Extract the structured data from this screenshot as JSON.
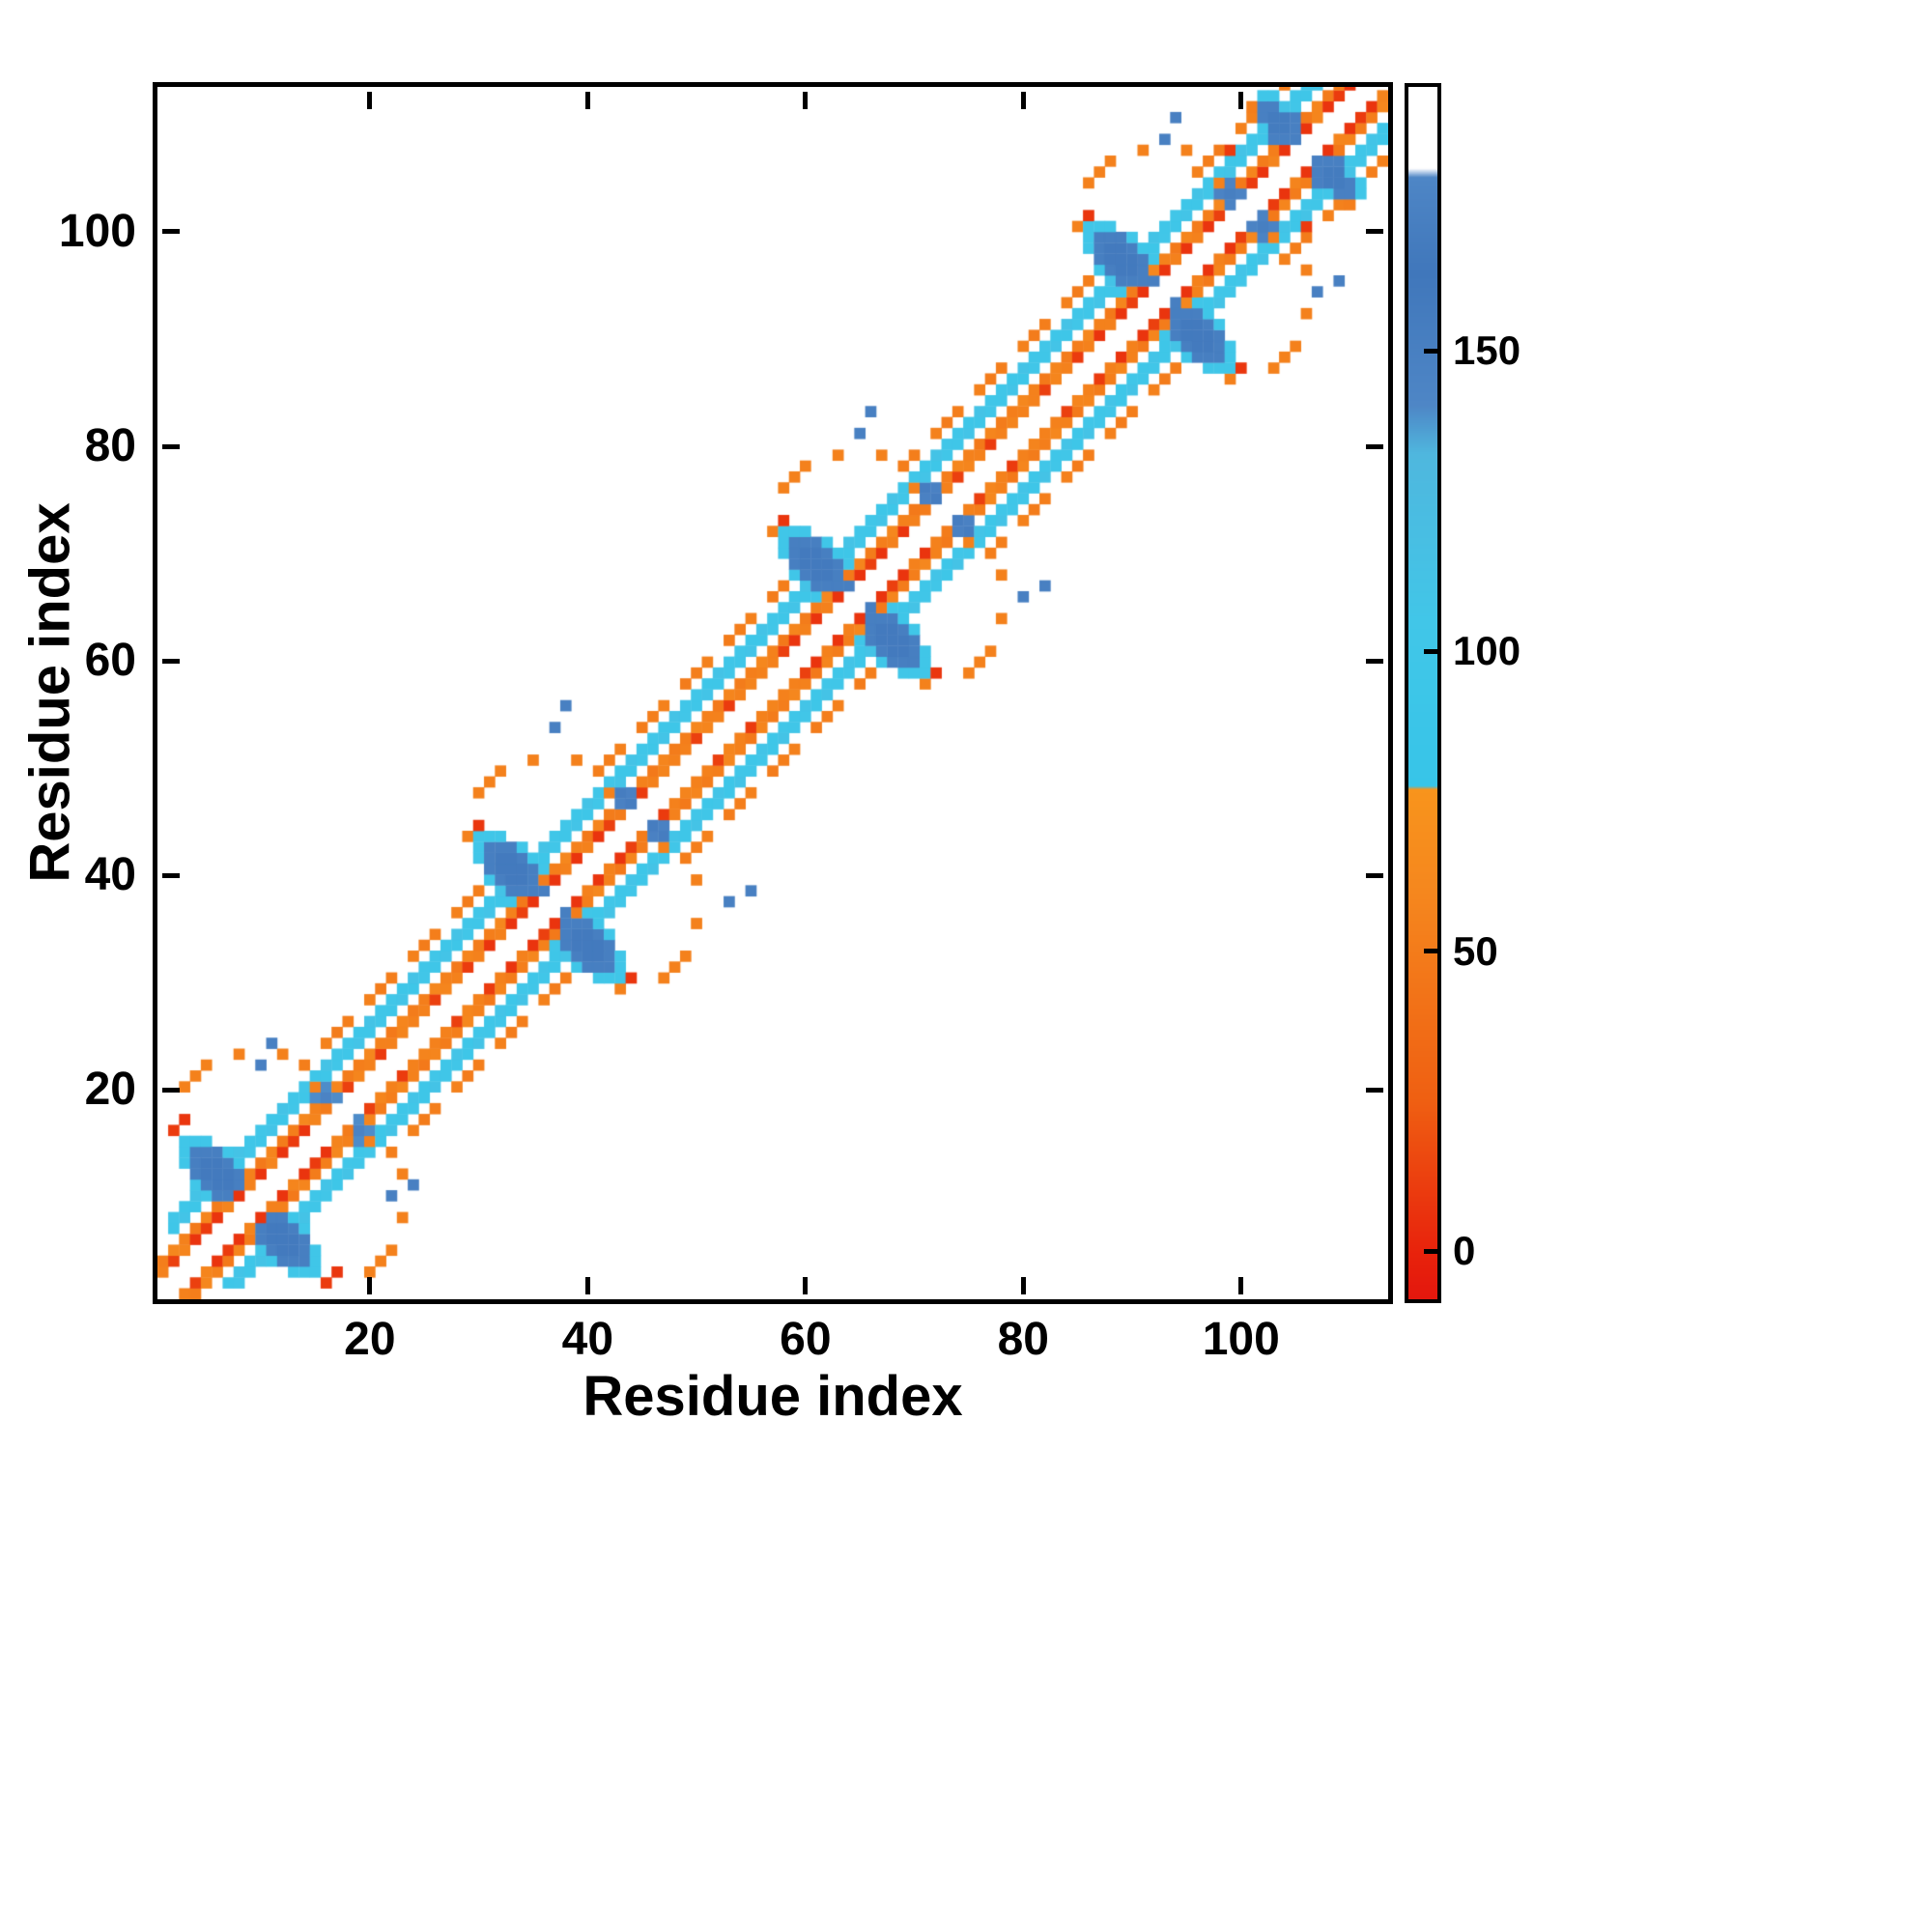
{
  "figure": {
    "background": "#ffffff",
    "axis_color": "#000000"
  },
  "chart_data": {
    "type": "heatmap",
    "title": "",
    "xlabel": "Residue index",
    "ylabel": "Residue index",
    "n_residues": 113,
    "x_range": [
      1,
      113
    ],
    "y_range": [
      1,
      113
    ],
    "x_ticks": [
      20,
      40,
      60,
      80,
      100
    ],
    "y_ticks": [
      20,
      40,
      60,
      80,
      100
    ],
    "grid": false,
    "description": "Symmetric protein residue-residue contact map. White = no contact. Near-diagonal helical stripes alternate orange/red (values ~0-60) and cyan (values ~90-110). Five anti-diagonal steel-blue packing clusters (values ~140-160) sit on the diagonal near residues 9, 36, 64, 92 and 107, each flanked by white holes bordered with scattered orange/red dots and isolated blue dots.",
    "colorbar": {
      "ticks": [
        0,
        50,
        100,
        150
      ],
      "vmin": -8,
      "vmax": 194,
      "stops": [
        [
          -8,
          "#e3170d"
        ],
        [
          0,
          "#e8230c"
        ],
        [
          25,
          "#ef5f12"
        ],
        [
          60,
          "#f5871e"
        ],
        [
          77,
          "#f8941c"
        ],
        [
          77.6,
          "#37c5e8"
        ],
        [
          105,
          "#41c6e8"
        ],
        [
          133,
          "#4fb7de"
        ],
        [
          141,
          "#4e86c6"
        ],
        [
          163,
          "#4077bb"
        ],
        [
          179,
          "#4e86c6"
        ],
        [
          180.5,
          "#ffffff"
        ],
        [
          194,
          "#ffffff"
        ]
      ]
    },
    "stripes": [
      {
        "from": 1,
        "to": 111,
        "offset": 2,
        "values": [
          55,
          12,
          58,
          55,
          10,
          55,
          57,
          55
        ]
      },
      {
        "from": 1,
        "to": 110,
        "offset": 3,
        "values": [
          52,
          60,
          55,
          48,
          58,
          50
        ]
      },
      {
        "from": 2,
        "to": 108,
        "offset": 5,
        "values": [
          100,
          108,
          96,
          104
        ]
      },
      {
        "from": 2,
        "to": 107,
        "offset": 6,
        "values": [
          104,
          98,
          110,
          102
        ]
      },
      {
        "from": 14,
        "to": 30,
        "offset": 8,
        "values": [
          52,
          -1,
          55,
          50
        ]
      },
      {
        "from": 42,
        "to": 58,
        "offset": 8,
        "values": [
          52,
          55,
          -1,
          50
        ]
      },
      {
        "from": 70,
        "to": 86,
        "offset": 8,
        "values": [
          52,
          -1,
          55,
          50
        ]
      },
      {
        "from": 97,
        "to": 105,
        "offset": 8,
        "values": [
          55,
          50,
          -1,
          52
        ]
      }
    ],
    "clusters": [
      {
        "cx": 6.3,
        "cy": 11.7,
        "len": 7.2,
        "width": 3.4,
        "value": 152
      },
      {
        "cx": 33.3,
        "cy": 39.7,
        "len": 7.2,
        "width": 3.4,
        "value": 152
      },
      {
        "cx": 61.3,
        "cy": 67.7,
        "len": 7.2,
        "width": 3.4,
        "value": 152
      },
      {
        "cx": 89.3,
        "cy": 95.7,
        "len": 7.2,
        "width": 3.4,
        "value": 152
      },
      {
        "cx": 103.8,
        "cy": 108.2,
        "len": 5.2,
        "width": 3.0,
        "value": 150
      },
      {
        "cx": 16.0,
        "cy": 19.0,
        "len": 3.6,
        "width": 1.8,
        "value": 140
      },
      {
        "cx": 43.5,
        "cy": 46.5,
        "len": 3.6,
        "width": 1.8,
        "value": 148
      },
      {
        "cx": 71.5,
        "cy": 74.5,
        "len": 3.6,
        "width": 1.8,
        "value": 148
      },
      {
        "cx": 99.0,
        "cy": 102.0,
        "len": 3.6,
        "width": 1.8,
        "value": 146
      }
    ],
    "fringe_value": 102,
    "red_core": {
      "centers": [
        9,
        36,
        64,
        92,
        107
      ],
      "half_width": 5,
      "value": 7
    },
    "dots": [
      [
        3,
        20,
        55
      ],
      [
        4,
        21,
        55
      ],
      [
        5,
        22,
        55
      ],
      [
        8,
        23,
        55
      ],
      [
        12,
        23,
        55
      ],
      [
        14,
        22,
        52
      ],
      [
        15,
        20,
        55
      ],
      [
        16,
        18,
        50
      ],
      [
        3,
        17,
        8
      ],
      [
        2,
        16,
        10
      ],
      [
        10,
        22,
        150
      ],
      [
        11,
        24,
        150
      ],
      [
        29,
        43,
        55
      ],
      [
        30,
        44,
        8
      ],
      [
        30,
        47,
        55
      ],
      [
        31,
        48,
        55
      ],
      [
        32,
        49,
        55
      ],
      [
        35,
        50,
        55
      ],
      [
        39,
        50,
        55
      ],
      [
        41,
        49,
        52
      ],
      [
        42,
        47,
        55
      ],
      [
        43,
        45,
        50
      ],
      [
        37,
        53,
        150
      ],
      [
        38,
        55,
        150
      ],
      [
        57,
        71,
        55
      ],
      [
        58,
        72,
        8
      ],
      [
        58,
        75,
        55
      ],
      [
        59,
        76,
        55
      ],
      [
        60,
        77,
        55
      ],
      [
        63,
        78,
        55
      ],
      [
        67,
        78,
        55
      ],
      [
        69,
        77,
        52
      ],
      [
        70,
        75,
        55
      ],
      [
        71,
        73,
        50
      ],
      [
        65,
        80,
        150
      ],
      [
        66,
        82,
        150
      ],
      [
        85,
        99,
        55
      ],
      [
        86,
        100,
        8
      ],
      [
        86,
        103,
        55
      ],
      [
        87,
        104,
        55
      ],
      [
        88,
        105,
        55
      ],
      [
        91,
        106,
        55
      ],
      [
        95,
        106,
        55
      ],
      [
        97,
        105,
        52
      ],
      [
        98,
        103,
        55
      ],
      [
        93,
        107,
        150
      ],
      [
        94,
        109,
        150
      ],
      [
        96,
        104,
        55
      ],
      [
        99,
        106,
        10
      ],
      [
        100,
        108,
        55
      ],
      [
        101,
        110,
        52
      ]
    ]
  }
}
